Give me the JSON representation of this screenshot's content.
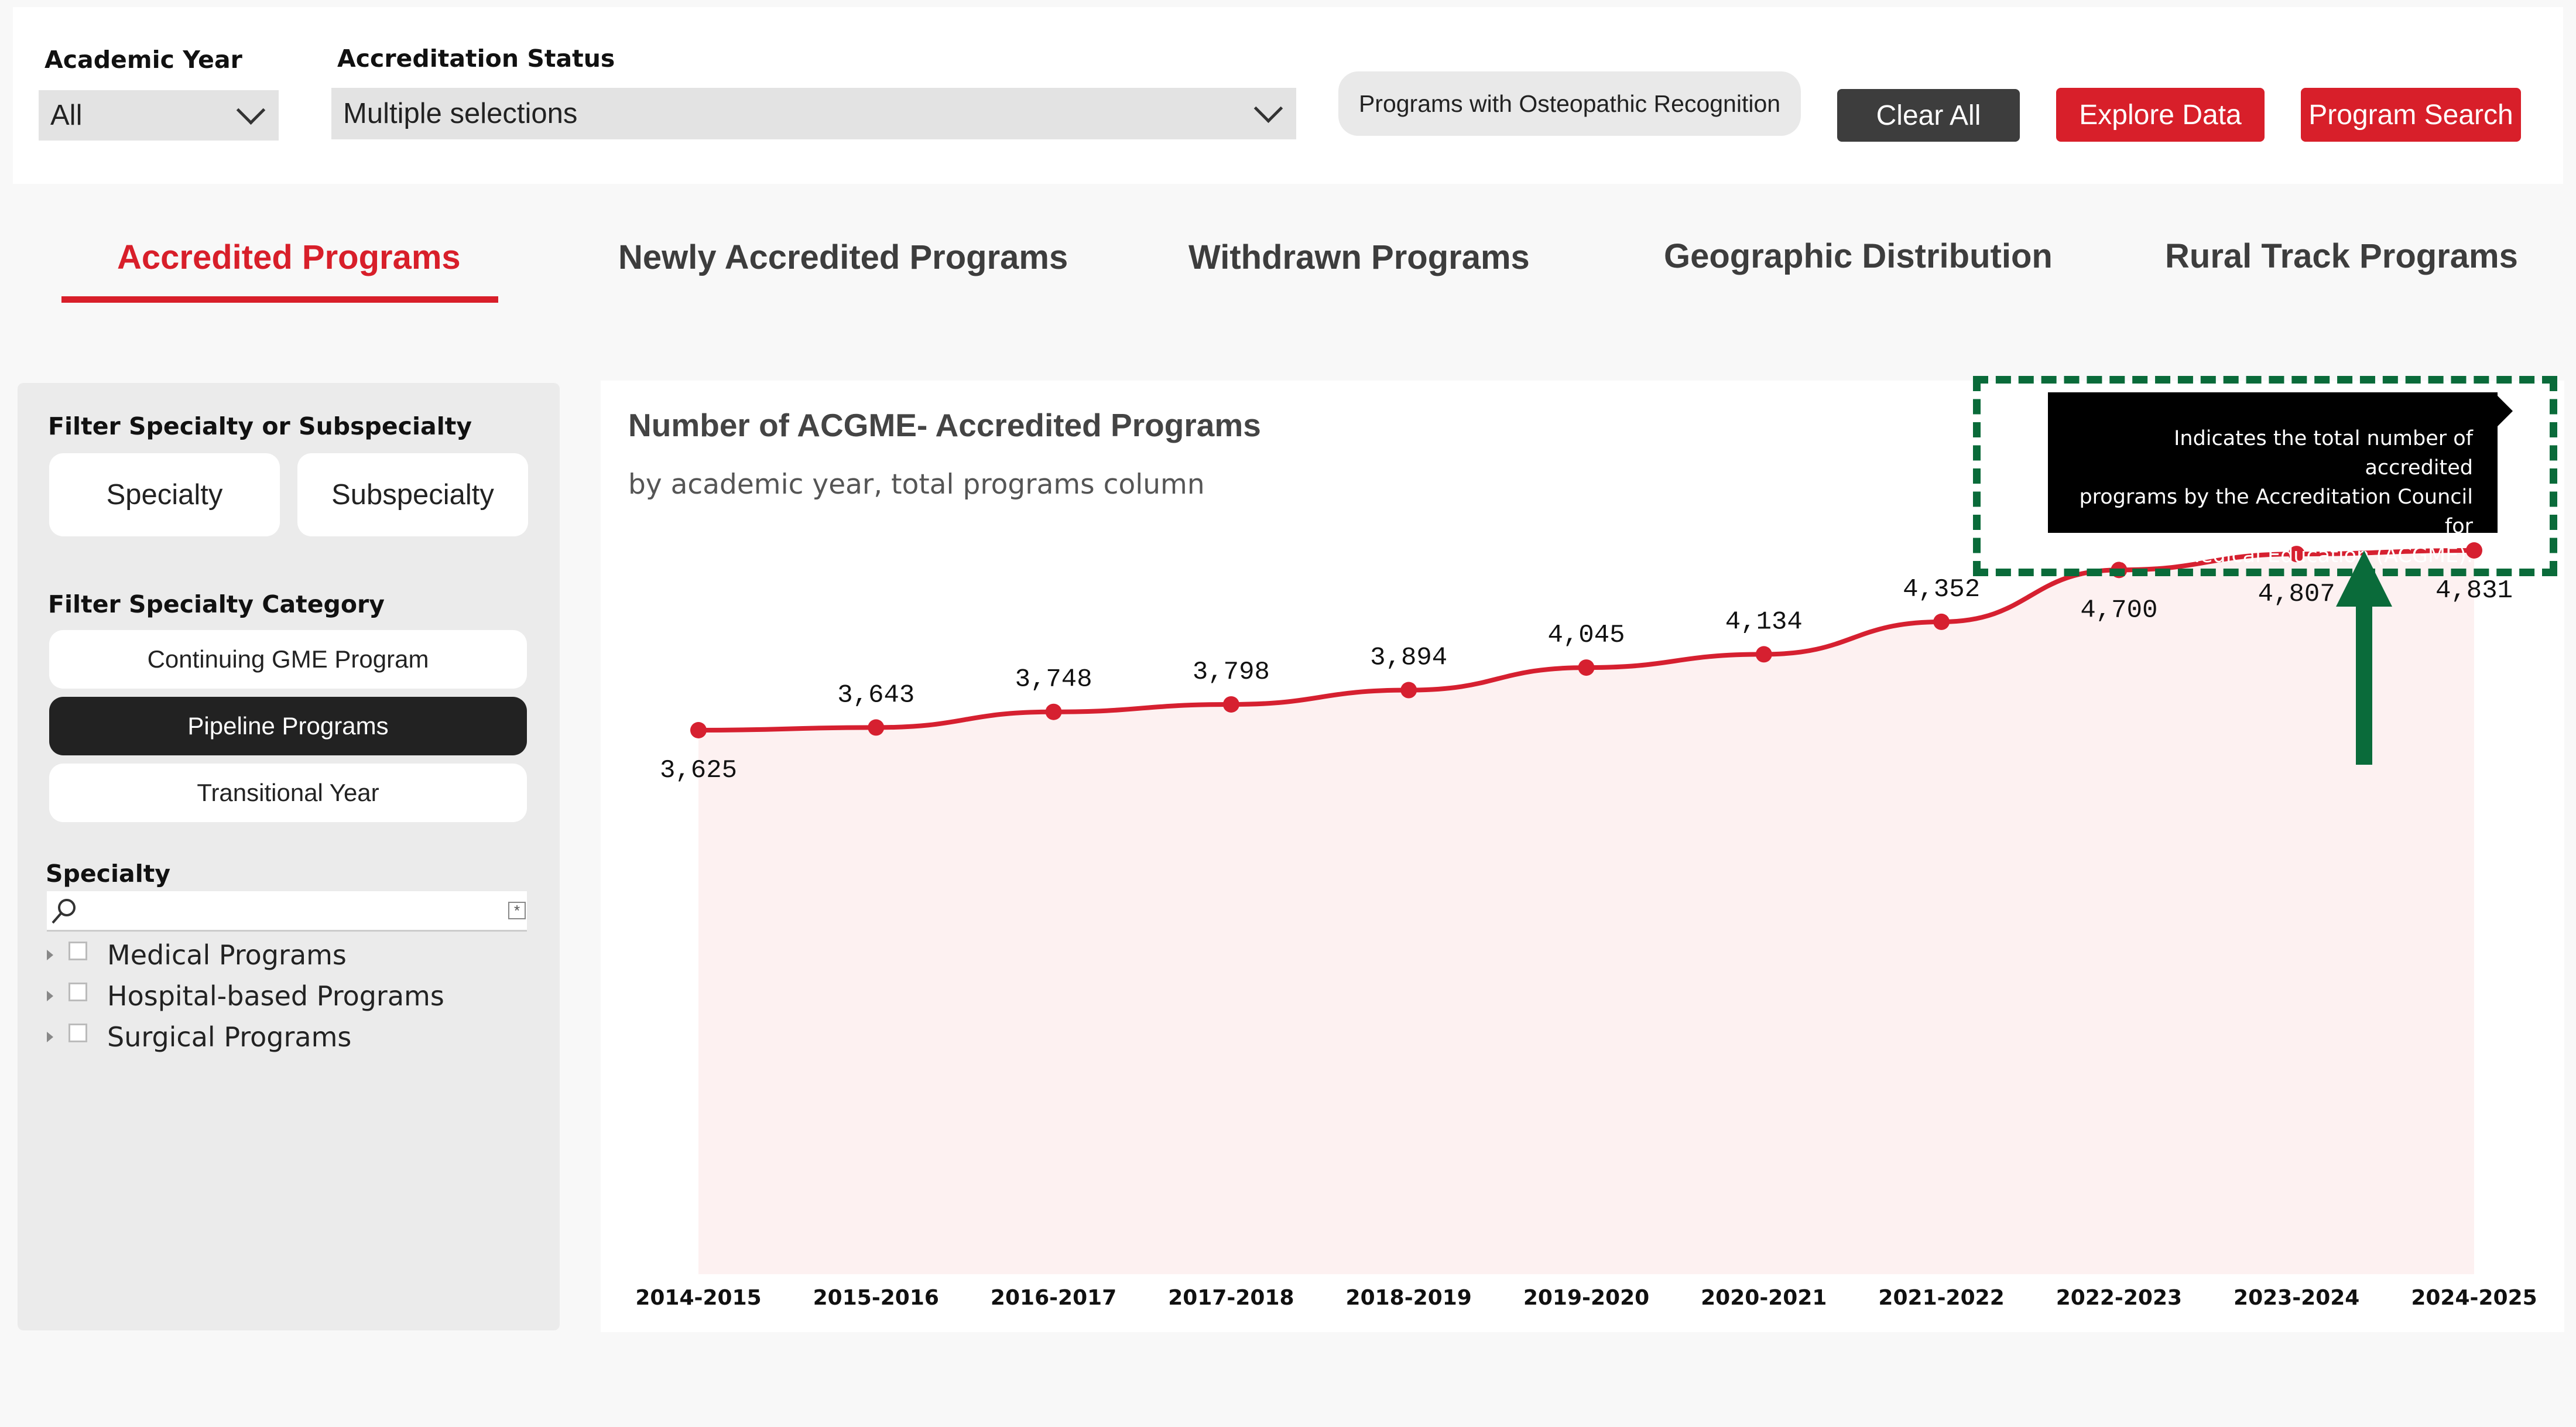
{
  "filters": {
    "academic_year": {
      "label": "Academic Year",
      "value": "All"
    },
    "accreditation_status": {
      "label": "Accreditation Status",
      "value": "Multiple selections"
    },
    "osteopathic_button": "Programs with Osteopathic Recognition",
    "clear_all": "Clear All",
    "explore_data": "Explore Data",
    "program_search": "Program Search"
  },
  "tabs": [
    {
      "label": "Accredited Programs",
      "active": true
    },
    {
      "label": "Newly Accredited Programs"
    },
    {
      "label": "Withdrawn Programs"
    },
    {
      "label": "Geographic Distribution"
    },
    {
      "label": "Rural Track Programs"
    }
  ],
  "sidebar": {
    "filter_specialty_label": "Filter Specialty or Subspecialty",
    "segments": [
      "Specialty",
      "Subspecialty"
    ],
    "filter_category_label": "Filter Specialty Category",
    "categories": [
      {
        "label": "Continuing GME Program"
      },
      {
        "label": "Pipeline Programs",
        "selected": true
      },
      {
        "label": "Transitional Year"
      }
    ],
    "specialty_label": "Specialty",
    "search_placeholder": "",
    "tree": [
      "Medical Programs",
      "Hospital-based Programs",
      "Surgical Programs"
    ]
  },
  "colors": {
    "accent": "#d81f2a",
    "line": "#d62030",
    "area_fill": "#fdf1f1",
    "callout": "#0a6b3a"
  },
  "tooltip": {
    "lines": [
      "Indicates the total number of accredited",
      "programs by the Accreditation Council for",
      "Graduate Medical Education (ACGME)."
    ]
  },
  "chart_data": {
    "type": "area",
    "title": "Number of ACGME- Accredited Programs",
    "subtitle": "by academic year, total programs column",
    "categories": [
      "2014-2015",
      "2015-2016",
      "2016-2017",
      "2017-2018",
      "2018-2019",
      "2019-2020",
      "2020-2021",
      "2021-2022",
      "2022-2023",
      "2023-2024",
      "2024-2025"
    ],
    "values": [
      3625,
      3643,
      3748,
      3798,
      3894,
      4045,
      4134,
      4352,
      4700,
      4807,
      4831
    ],
    "data_labels": [
      "3,625",
      "3,643",
      "3,748",
      "3,798",
      "3,894",
      "4,045",
      "4,134",
      "4,352",
      "4,700",
      "4,807",
      "4,831"
    ],
    "grid": false,
    "legend": "none"
  }
}
